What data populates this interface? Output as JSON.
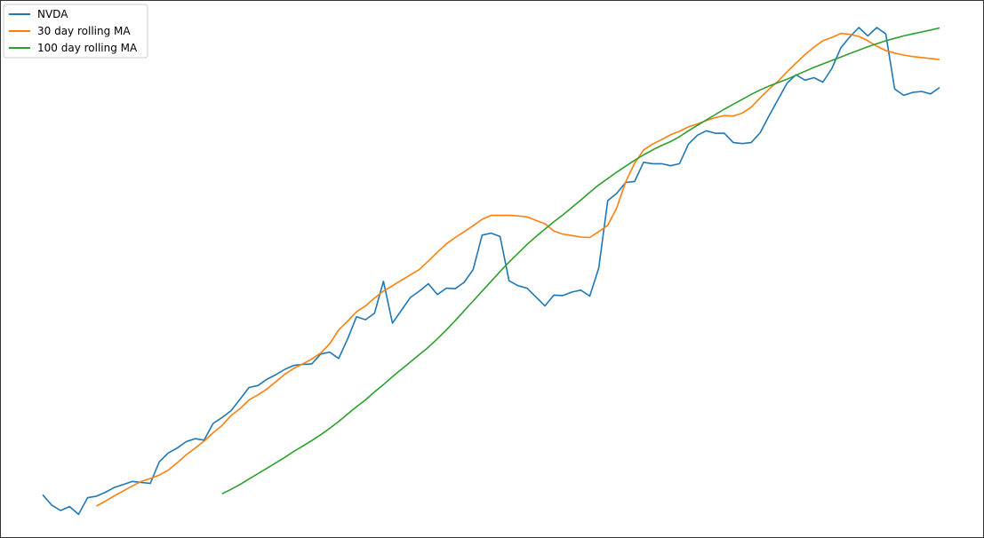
{
  "chart_data": {
    "type": "line",
    "title": "",
    "xlabel": "",
    "ylabel": "",
    "axes_visible": false,
    "grid": false,
    "legend_position": "top-left",
    "x": [
      0,
      10,
      20,
      30,
      40,
      50,
      60,
      70,
      80,
      90,
      100,
      110,
      120,
      130,
      140,
      150,
      160,
      170,
      180,
      190,
      200,
      210,
      220,
      230,
      240,
      250,
      260,
      270,
      280,
      290,
      300,
      310,
      320,
      330,
      340,
      350,
      360,
      370,
      380,
      390,
      400,
      410,
      420,
      430,
      440,
      450,
      460,
      470,
      480,
      490,
      500,
      510,
      520,
      530,
      540,
      550,
      560,
      570,
      580,
      590,
      600,
      610,
      620,
      630,
      640,
      650,
      660,
      670,
      680,
      690,
      700,
      710,
      720,
      730,
      740,
      750,
      760,
      770,
      780,
      790,
      800,
      810,
      820,
      830,
      840,
      850,
      860,
      870,
      880,
      890,
      900,
      910,
      920,
      930,
      940,
      950,
      960,
      970,
      980,
      990,
      1000
    ],
    "ylim": [
      0,
      100
    ],
    "series": [
      {
        "name": "NVDA",
        "color": "#1f77b4",
        "values": [
          4.1,
          2.0,
          0.9,
          1.7,
          0.1,
          3.5,
          3.8,
          4.6,
          5.6,
          6.2,
          6.8,
          6.6,
          6.4,
          10.8,
          12.6,
          13.6,
          14.9,
          15.5,
          15.2,
          18.6,
          19.8,
          21.2,
          23.5,
          25.9,
          26.3,
          27.6,
          28.5,
          29.6,
          30.4,
          30.6,
          30.7,
          32.7,
          33.1,
          31.8,
          35.8,
          40.3,
          39.7,
          41.0,
          47.5,
          39.0,
          41.6,
          44.2,
          45.5,
          47.0,
          44.8,
          46.1,
          46.0,
          47.3,
          49.9,
          56.9,
          57.3,
          56.6,
          47.6,
          46.6,
          46.1,
          44.3,
          42.5,
          44.7,
          44.6,
          45.3,
          45.7,
          44.5,
          50.2,
          63.9,
          65.4,
          67.6,
          67.8,
          71.7,
          71.4,
          71.4,
          71.0,
          71.4,
          75.4,
          77.2,
          78.1,
          77.6,
          77.6,
          75.7,
          75.5,
          75.7,
          77.7,
          81.2,
          84.5,
          87.8,
          89.5,
          88.4,
          88.9,
          88.0,
          90.8,
          95.0,
          97.2,
          99.1,
          97.4,
          99.1,
          97.8,
          86.6,
          85.3,
          85.9,
          86.1,
          85.6,
          86.9
        ]
      },
      {
        "name": "30 day rolling MA",
        "color": "#ff7f0e",
        "values": [
          null,
          null,
          null,
          null,
          null,
          null,
          1.8,
          2.8,
          3.9,
          4.9,
          5.9,
          6.8,
          7.4,
          8.1,
          9.1,
          10.6,
          12.2,
          13.6,
          15.0,
          16.7,
          18.2,
          20.2,
          21.6,
          23.4,
          24.4,
          25.6,
          27.1,
          28.6,
          29.8,
          30.7,
          31.7,
          32.9,
          34.8,
          37.6,
          39.4,
          41.3,
          42.5,
          44.1,
          45.5,
          46.6,
          47.7,
          48.8,
          49.9,
          51.6,
          53.4,
          55.1,
          56.4,
          57.6,
          58.8,
          60.1,
          60.9,
          60.9,
          60.9,
          60.8,
          60.6,
          59.9,
          59.2,
          57.7,
          57.1,
          56.8,
          56.5,
          56.4,
          57.6,
          58.9,
          62.4,
          67.7,
          71.5,
          74.2,
          75.4,
          76.3,
          77.3,
          78.0,
          78.9,
          79.5,
          80.2,
          80.8,
          81.2,
          81.1,
          81.7,
          82.9,
          84.8,
          86.6,
          88.2,
          90.1,
          91.9,
          93.6,
          95.1,
          96.4,
          97.1,
          97.9,
          97.7,
          97.3,
          96.4,
          95.3,
          94.4,
          93.9,
          93.5,
          93.2,
          93.0,
          92.8,
          92.6
        ]
      },
      {
        "name": "100 day rolling MA",
        "color": "#2ca02c",
        "values": [
          null,
          null,
          null,
          null,
          null,
          null,
          null,
          null,
          null,
          null,
          null,
          null,
          null,
          null,
          null,
          null,
          null,
          null,
          null,
          null,
          4.3,
          5.2,
          6.2,
          7.3,
          8.4,
          9.5,
          10.6,
          11.7,
          12.9,
          14.0,
          15.1,
          16.3,
          17.6,
          19.0,
          20.5,
          22.0,
          23.4,
          25.0,
          26.5,
          28.1,
          29.6,
          31.1,
          32.6,
          34.1,
          35.8,
          37.6,
          39.5,
          41.5,
          43.5,
          45.5,
          47.5,
          49.5,
          51.4,
          53.2,
          55.0,
          56.6,
          58.1,
          59.6,
          61.0,
          62.5,
          64.0,
          65.6,
          67.1,
          68.4,
          69.7,
          70.9,
          72.1,
          73.2,
          74.2,
          75.1,
          75.9,
          76.9,
          78.1,
          79.2,
          80.3,
          81.4,
          82.5,
          83.5,
          84.5,
          85.5,
          86.4,
          87.2,
          87.9,
          88.6,
          89.4,
          90.2,
          91.0,
          91.7,
          92.4,
          93.1,
          93.8,
          94.5,
          95.2,
          95.8,
          96.4,
          96.9,
          97.4,
          97.8,
          98.2,
          98.6,
          99.0
        ]
      }
    ]
  }
}
